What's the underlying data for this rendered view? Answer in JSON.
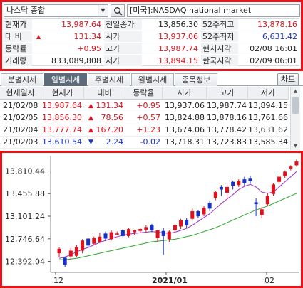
{
  "search": {
    "stock_name": "나스닥 종합",
    "market_label": "[미국]:NASDAQ national market"
  },
  "quote": {
    "rows": [
      {
        "l1": "현재가",
        "v1": "13,987.64",
        "c1": "red",
        "l2": "전일종가",
        "v2": "13,856.30",
        "c2": "black",
        "l3": "52주최고",
        "v3": "13,878.16",
        "c3": "red"
      },
      {
        "l1": "대  비",
        "v1": "131.34",
        "c1": "red",
        "l2": "시가",
        "v2": "13,937.06",
        "c2": "red",
        "l3": "52주최저",
        "v3": "6,631.42",
        "c3": "blue"
      },
      {
        "l1": "등락률",
        "v1": "+0.95",
        "c1": "red",
        "l2": "고가",
        "v2": "13,987.74",
        "c2": "red",
        "l3": "현지시각",
        "v3": "02/08 16:01",
        "c3": "black"
      },
      {
        "l1": "거래량",
        "v1": "833,089,808",
        "c1": "black",
        "l2": "저가",
        "v2": "13,894.15",
        "c2": "red",
        "l3": "한국시각",
        "v3": "02/09 06:01",
        "c3": "black"
      }
    ],
    "change_arrow": "▲"
  },
  "tabs": [
    {
      "label": "분별시세",
      "active": false
    },
    {
      "label": "일별시세",
      "active": true
    },
    {
      "label": "주별시세",
      "active": false
    },
    {
      "label": "월별시세",
      "active": false
    },
    {
      "label": "종목정보",
      "active": false
    }
  ],
  "chart_button_label": "차트",
  "daily": {
    "headers": [
      "현재일자",
      "현재가",
      "대비",
      "등락율",
      "시가",
      "고가",
      "저가"
    ],
    "rows": [
      {
        "date": "21/02/08",
        "price": "13,987.64",
        "arrow": "▲",
        "change": "131.34",
        "rate": "+0.95",
        "open": "13,937.06",
        "high": "13,987.74",
        "low": "13,894.15",
        "dir": "up"
      },
      {
        "date": "21/02/05",
        "price": "13,856.30",
        "arrow": "▲",
        "change": "78.56",
        "rate": "+0.57",
        "open": "13,824.88",
        "high": "13,878.16",
        "low": "13,761.66",
        "dir": "up"
      },
      {
        "date": "21/02/04",
        "price": "13,777.74",
        "arrow": "▲",
        "change": "167.20",
        "rate": "+1.23",
        "open": "13,674.06",
        "high": "13,778.42",
        "low": "13,631.62",
        "dir": "up"
      },
      {
        "date": "21/02/03",
        "price": "13,610.54",
        "arrow": "▼",
        "change": "2.24",
        "rate": "-0.02",
        "open": "13,718.31",
        "high": "13,723.83",
        "low": "13,585.34",
        "dir": "down"
      }
    ]
  },
  "colors": {
    "up": "#e0111c",
    "down": "#1730c8",
    "ma_short": "#9b2fc6",
    "ma_long": "#2ea72e",
    "border": "#e8141c"
  },
  "chart_data": {
    "type": "candlestick",
    "y_ticks": [
      "13,810.44",
      "13,455.88",
      "13,101.24",
      "12,746.64",
      "12,392.04"
    ],
    "y_tick_values": [
      13810.44,
      13455.88,
      13101.24,
      12746.64,
      12392.04
    ],
    "ylim": [
      12220,
      14050
    ],
    "x_labels": [
      "12",
      "2021/01",
      "02"
    ],
    "candles": [
      [
        12520,
        12590,
        12460,
        12610,
        "up"
      ],
      [
        12450,
        12340,
        12300,
        12470,
        "down"
      ],
      [
        12470,
        12560,
        12420,
        12600,
        "up"
      ],
      [
        12480,
        12620,
        12460,
        12650,
        "up"
      ],
      [
        12560,
        12720,
        12520,
        12740,
        "up"
      ],
      [
        12750,
        12640,
        12610,
        12760,
        "down"
      ],
      [
        12670,
        12760,
        12650,
        12780,
        "up"
      ],
      [
        12700,
        12780,
        12680,
        12840,
        "up"
      ],
      [
        12830,
        12750,
        12710,
        12860,
        "down"
      ],
      [
        12740,
        12850,
        12720,
        12880,
        "up"
      ],
      [
        12830,
        12820,
        12800,
        12860,
        "up"
      ],
      [
        12880,
        12790,
        12760,
        12900,
        "down"
      ],
      [
        12790,
        12900,
        12770,
        12920,
        "up"
      ],
      [
        12850,
        12880,
        12810,
        12890,
        "up"
      ],
      [
        12900,
        12870,
        12840,
        12920,
        "up"
      ],
      [
        12890,
        12930,
        12850,
        12960,
        "up"
      ],
      [
        12960,
        12880,
        12850,
        12980,
        "down"
      ],
      [
        12760,
        12880,
        12700,
        12890,
        "up"
      ],
      [
        12870,
        12790,
        12500,
        12920,
        "down"
      ],
      [
        12740,
        12860,
        12700,
        12880,
        "up"
      ],
      [
        12880,
        12960,
        12850,
        12980,
        "up"
      ],
      [
        12940,
        13040,
        12900,
        13060,
        "up"
      ],
      [
        13040,
        12960,
        12920,
        13070,
        "down"
      ],
      [
        13060,
        13180,
        13030,
        13220,
        "up"
      ],
      [
        13180,
        13100,
        13070,
        13200,
        "down"
      ],
      [
        13130,
        13230,
        13100,
        13260,
        "up"
      ],
      [
        13310,
        13220,
        13180,
        13340,
        "down"
      ],
      [
        13390,
        13480,
        13350,
        13500,
        "up"
      ],
      [
        13560,
        13520,
        13420,
        13590,
        "down"
      ],
      [
        13470,
        13560,
        13380,
        13600,
        "up"
      ],
      [
        13640,
        13580,
        13520,
        13660,
        "down"
      ],
      [
        13590,
        13650,
        13560,
        13680,
        "up"
      ],
      [
        13680,
        13620,
        13580,
        13720,
        "down"
      ],
      [
        13690,
        13650,
        13610,
        13730,
        "down"
      ],
      [
        13320,
        13290,
        13100,
        13380,
        "down"
      ],
      [
        13120,
        13210,
        13070,
        13240,
        "up"
      ],
      [
        13290,
        13420,
        13260,
        13460,
        "up"
      ],
      [
        13450,
        13600,
        13420,
        13620,
        "up"
      ],
      [
        13640,
        13720,
        13610,
        13740,
        "up"
      ],
      [
        13730,
        13800,
        13700,
        13820,
        "up"
      ],
      [
        13850,
        13880,
        13820,
        13900,
        "up"
      ],
      [
        13900,
        13960,
        13880,
        13990,
        "up"
      ]
    ],
    "ma_short": [
      12440,
      12460,
      12500,
      12540,
      12580,
      12610,
      12650,
      12690,
      12720,
      12750,
      12780,
      12800,
      12820,
      12830,
      12840,
      12850,
      12860,
      12850,
      12840,
      12830,
      12850,
      12880,
      12910,
      12960,
      13020,
      13080,
      13140,
      13220,
      13300,
      13370,
      13440,
      13520,
      13570,
      13600,
      13560,
      13480,
      13460,
      13480,
      13560,
      13640,
      13720,
      13800
    ],
    "ma_long": [
      12420,
      12420,
      12430,
      12440,
      12460,
      12480,
      12500,
      12520,
      12540,
      12560,
      12580,
      12600,
      12620,
      12640,
      12660,
      12680,
      12700,
      12710,
      12720,
      12730,
      12740,
      12760,
      12780,
      12800,
      12830,
      12860,
      12890,
      12920,
      12960,
      13000,
      13040,
      13080,
      13120,
      13160,
      13200,
      13230,
      13260,
      13300,
      13340,
      13380,
      13420,
      13460
    ]
  }
}
